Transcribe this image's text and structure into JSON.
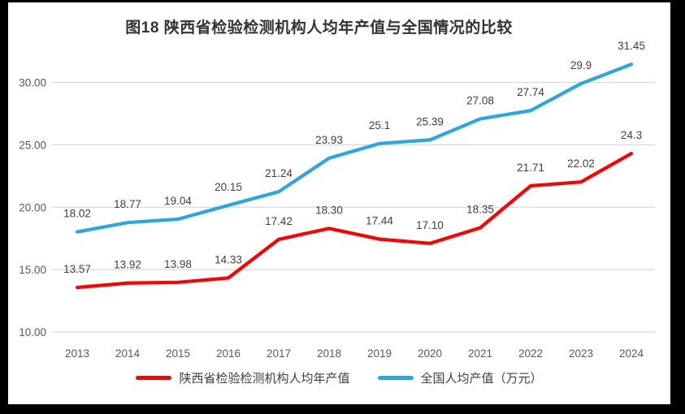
{
  "chart_data": {
    "type": "line",
    "title": "图18 陕西省检验检测机构人均年产值与全国情况的比较",
    "categories": [
      "2013",
      "2014",
      "2015",
      "2016",
      "2017",
      "2018",
      "2019",
      "2020",
      "2021",
      "2022",
      "2023",
      "2024"
    ],
    "series": [
      {
        "name": "陕西省检验检测机构人均年产值",
        "color": "#fe0000",
        "values": [
          13.57,
          13.92,
          13.98,
          14.33,
          17.42,
          18.3,
          17.44,
          17.1,
          18.35,
          21.71,
          22.02,
          24.3
        ],
        "labels": [
          "13.57",
          "13.92",
          "13.98",
          "14.33",
          "17.42",
          "18.30",
          "17.44",
          "17.10",
          "18.35",
          "21.71",
          "22.02",
          "24.3"
        ]
      },
      {
        "name": "全国人均产值（万元）",
        "color": "#29a8e0",
        "values": [
          18.02,
          18.77,
          19.04,
          20.15,
          21.24,
          23.93,
          25.1,
          25.39,
          27.08,
          27.74,
          29.9,
          31.45
        ],
        "labels": [
          "18.02",
          "18.77",
          "19.04",
          "20.15",
          "21.24",
          "23.93",
          "25.1",
          "25.39",
          "27.08",
          "27.74",
          "29.9",
          "31.45"
        ]
      }
    ],
    "y_axis": {
      "min": 10,
      "max": 30,
      "ticks": [
        {
          "value": 10,
          "label": "10.00"
        },
        {
          "value": 15,
          "label": "15.00"
        },
        {
          "value": 20,
          "label": "20.00"
        },
        {
          "value": 25,
          "label": "25.00"
        },
        {
          "value": 30,
          "label": "30.00"
        }
      ]
    },
    "xlabel": "",
    "ylabel": "",
    "grid": true,
    "legend_position": "bottom"
  },
  "colors": {
    "grid": "#d9d9d9",
    "axis_text": "#595959",
    "label_text": "#404040",
    "title_text": "#333333",
    "photo_border": "#000000"
  }
}
